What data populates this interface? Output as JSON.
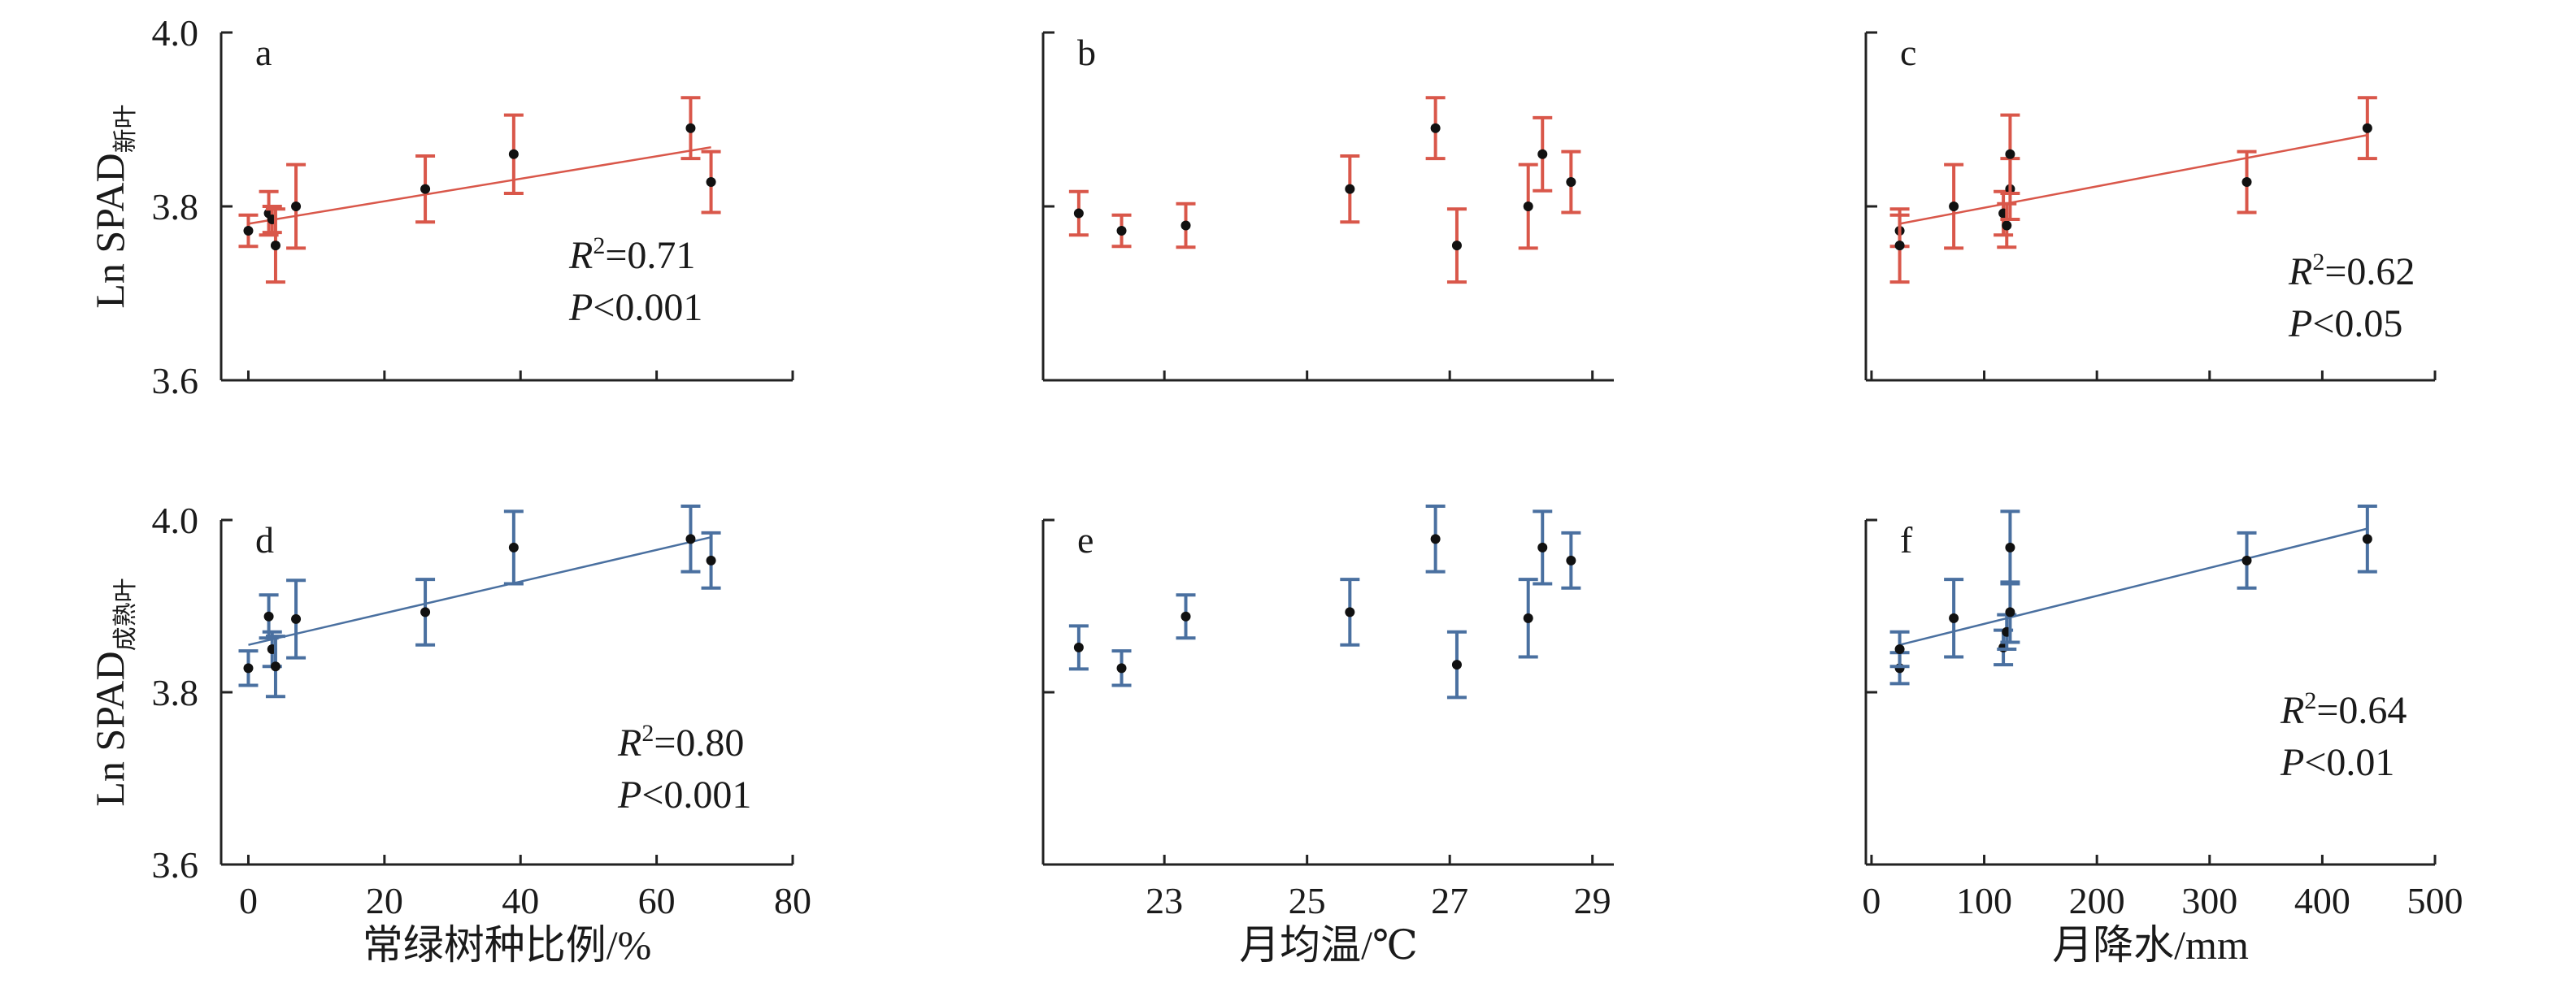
{
  "y_label_top": {
    "main": "Ln SPAD",
    "sub": "新叶"
  },
  "y_label_bottom": {
    "main": "Ln SPAD",
    "sub": "成熟叶"
  },
  "x_labels": [
    "常绿树种比例/%",
    "月均温/℃",
    "月降水/mm"
  ],
  "colors": {
    "red": "#d9574a",
    "blue": "#4a70a0",
    "point": "#111111"
  },
  "chart_data": [
    {
      "panel": "a",
      "type": "scatter",
      "xlim": [
        -4,
        80
      ],
      "ylim": [
        3.6,
        4.0
      ],
      "x_ticks": [
        0,
        20,
        40,
        60,
        80
      ],
      "y_ticks": [
        "3.6",
        "3.8",
        "4.0"
      ],
      "show_x_tick_labels": false,
      "show_y_tick_labels": true,
      "color": "red",
      "points": [
        {
          "x": 0,
          "y": 3.772,
          "err": 0.018
        },
        {
          "x": 3,
          "y": 3.792,
          "err": 0.025
        },
        {
          "x": 3.5,
          "y": 3.785,
          "err": 0.015
        },
        {
          "x": 4,
          "y": 3.755,
          "err": 0.042
        },
        {
          "x": 7,
          "y": 3.8,
          "err": 0.048
        },
        {
          "x": 26,
          "y": 3.82,
          "err": 0.038
        },
        {
          "x": 39,
          "y": 3.86,
          "err": 0.045
        },
        {
          "x": 65,
          "y": 3.89,
          "err": 0.035
        },
        {
          "x": 68,
          "y": 3.828,
          "err": 0.035
        }
      ],
      "fit": {
        "x": [
          0,
          68
        ],
        "y": [
          3.78,
          3.868
        ]
      },
      "stats": {
        "r2": "0.71",
        "p": "<0.001"
      }
    },
    {
      "panel": "b",
      "type": "scatter",
      "xlim": [
        21.3,
        29.3
      ],
      "ylim": [
        3.6,
        4.0
      ],
      "x_ticks": [
        23,
        25,
        27,
        29
      ],
      "y_ticks": [
        "3.6",
        "3.8",
        "4.0"
      ],
      "show_x_tick_labels": false,
      "show_y_tick_labels": false,
      "color": "red",
      "points": [
        {
          "x": 21.8,
          "y": 3.792,
          "err": 0.025
        },
        {
          "x": 22.4,
          "y": 3.772,
          "err": 0.018
        },
        {
          "x": 23.3,
          "y": 3.778,
          "err": 0.025
        },
        {
          "x": 25.6,
          "y": 3.82,
          "err": 0.038
        },
        {
          "x": 26.8,
          "y": 3.89,
          "err": 0.035
        },
        {
          "x": 27.1,
          "y": 3.755,
          "err": 0.042
        },
        {
          "x": 28.1,
          "y": 3.8,
          "err": 0.048
        },
        {
          "x": 28.3,
          "y": 3.86,
          "err": 0.042
        },
        {
          "x": 28.7,
          "y": 3.828,
          "err": 0.035
        }
      ],
      "fit": null,
      "stats": null
    },
    {
      "panel": "c",
      "type": "scatter",
      "xlim": [
        -5,
        500
      ],
      "ylim": [
        3.6,
        4.0
      ],
      "x_ticks": [
        0,
        100,
        200,
        300,
        400,
        500
      ],
      "y_ticks": [
        "3.6",
        "3.8",
        "4.0"
      ],
      "show_x_tick_labels": false,
      "show_y_tick_labels": false,
      "color": "red",
      "points": [
        {
          "x": 25,
          "y": 3.772,
          "err": 0.018
        },
        {
          "x": 25,
          "y": 3.755,
          "err": 0.042
        },
        {
          "x": 73,
          "y": 3.8,
          "err": 0.048
        },
        {
          "x": 117,
          "y": 3.792,
          "err": 0.025
        },
        {
          "x": 120,
          "y": 3.778,
          "err": 0.025
        },
        {
          "x": 123,
          "y": 3.82,
          "err": 0.035
        },
        {
          "x": 123,
          "y": 3.86,
          "err": 0.045
        },
        {
          "x": 333,
          "y": 3.828,
          "err": 0.035
        },
        {
          "x": 440,
          "y": 3.89,
          "err": 0.035
        }
      ],
      "fit": {
        "x": [
          25,
          440
        ],
        "y": [
          3.78,
          3.882
        ]
      },
      "stats": {
        "r2": "0.62",
        "p": "<0.05"
      }
    },
    {
      "panel": "d",
      "type": "scatter",
      "xlim": [
        -4,
        80
      ],
      "ylim": [
        3.6,
        4.0
      ],
      "x_ticks": [
        0,
        20,
        40,
        60,
        80
      ],
      "y_ticks": [
        "3.6",
        "3.8",
        "4.0"
      ],
      "show_x_tick_labels": true,
      "show_y_tick_labels": true,
      "color": "blue",
      "points": [
        {
          "x": 0,
          "y": 3.828,
          "err": 0.02
        },
        {
          "x": 3,
          "y": 3.888,
          "err": 0.025
        },
        {
          "x": 3.5,
          "y": 3.85,
          "err": 0.02
        },
        {
          "x": 4,
          "y": 3.83,
          "err": 0.035
        },
        {
          "x": 7,
          "y": 3.885,
          "err": 0.045
        },
        {
          "x": 26,
          "y": 3.893,
          "err": 0.038
        },
        {
          "x": 39,
          "y": 3.968,
          "err": 0.042
        },
        {
          "x": 65,
          "y": 3.978,
          "err": 0.038
        },
        {
          "x": 68,
          "y": 3.953,
          "err": 0.032
        }
      ],
      "fit": {
        "x": [
          0,
          68
        ],
        "y": [
          3.855,
          3.98
        ]
      },
      "stats": {
        "r2": "0.80",
        "p": "<0.001"
      }
    },
    {
      "panel": "e",
      "type": "scatter",
      "xlim": [
        21.3,
        29.3
      ],
      "ylim": [
        3.6,
        4.0
      ],
      "x_ticks": [
        23,
        25,
        27,
        29
      ],
      "y_ticks": [
        "3.6",
        "3.8",
        "4.0"
      ],
      "show_x_tick_labels": true,
      "show_y_tick_labels": false,
      "color": "blue",
      "points": [
        {
          "x": 21.8,
          "y": 3.852,
          "err": 0.025
        },
        {
          "x": 22.4,
          "y": 3.828,
          "err": 0.02
        },
        {
          "x": 23.3,
          "y": 3.888,
          "err": 0.025
        },
        {
          "x": 25.6,
          "y": 3.893,
          "err": 0.038
        },
        {
          "x": 26.8,
          "y": 3.978,
          "err": 0.038
        },
        {
          "x": 27.1,
          "y": 3.832,
          "err": 0.038
        },
        {
          "x": 28.1,
          "y": 3.886,
          "err": 0.045
        },
        {
          "x": 28.3,
          "y": 3.968,
          "err": 0.042
        },
        {
          "x": 28.7,
          "y": 3.953,
          "err": 0.032
        }
      ],
      "fit": null,
      "stats": null
    },
    {
      "panel": "f",
      "type": "scatter",
      "xlim": [
        -5,
        500
      ],
      "ylim": [
        3.6,
        4.0
      ],
      "x_ticks": [
        0,
        100,
        200,
        300,
        400,
        500
      ],
      "y_ticks": [
        "3.6",
        "3.8",
        "4.0"
      ],
      "show_x_tick_labels": true,
      "show_y_tick_labels": false,
      "color": "blue",
      "points": [
        {
          "x": 25,
          "y": 3.828,
          "err": 0.018
        },
        {
          "x": 25,
          "y": 3.85,
          "err": 0.02
        },
        {
          "x": 73,
          "y": 3.886,
          "err": 0.045
        },
        {
          "x": 117,
          "y": 3.852,
          "err": 0.02
        },
        {
          "x": 120,
          "y": 3.87,
          "err": 0.02
        },
        {
          "x": 123,
          "y": 3.893,
          "err": 0.035
        },
        {
          "x": 123,
          "y": 3.968,
          "err": 0.042
        },
        {
          "x": 333,
          "y": 3.953,
          "err": 0.032
        },
        {
          "x": 440,
          "y": 3.978,
          "err": 0.038
        }
      ],
      "fit": {
        "x": [
          25,
          440
        ],
        "y": [
          3.855,
          3.99
        ]
      },
      "stats": {
        "r2": "0.64",
        "p": "<0.01"
      }
    }
  ]
}
